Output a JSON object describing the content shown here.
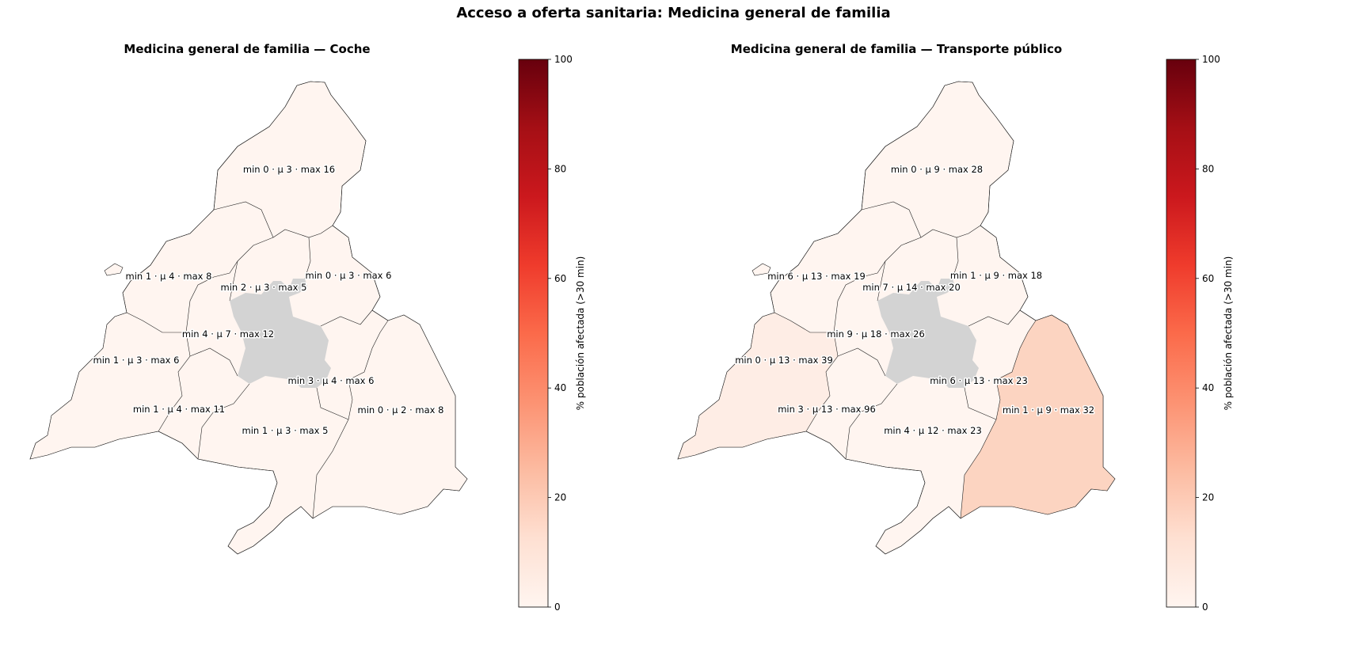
{
  "suptitle": "Acceso a oferta sanitaria: Medicina general de familia",
  "chart_data": [
    {
      "type": "choropleth",
      "title": "Medicina general de familia — Coche",
      "colormap": "Reds",
      "colorbar": {
        "label": "% población afectada (>30 min)",
        "range": [
          0,
          100
        ],
        "ticks": [
          "0",
          "20",
          "40",
          "60",
          "80",
          "100"
        ]
      },
      "no_data_color": "#d3d3d3",
      "regions": [
        {
          "id": "north",
          "label": "min 0 · μ 3 · max 16",
          "min": 0,
          "mean": 3,
          "max": 16,
          "fill": "#fff5f0"
        },
        {
          "id": "northwest",
          "label": "min 1 · μ 4 · max 8",
          "min": 1,
          "mean": 4,
          "max": 8,
          "fill": "#fff5f0"
        },
        {
          "id": "north-center",
          "label": "min 2 · μ 3 · max 5",
          "min": 2,
          "mean": 3,
          "max": 5,
          "fill": "#fff5f0"
        },
        {
          "id": "northeast",
          "label": "min 0 · μ 3 · max 6",
          "min": 0,
          "mean": 3,
          "max": 6,
          "fill": "#fff5f0"
        },
        {
          "id": "center-west",
          "label": "min 4 · μ 7 · max 12",
          "min": 4,
          "mean": 7,
          "max": 12,
          "fill": "#fff5f0"
        },
        {
          "id": "west",
          "label": "min 1 · μ 3 · max 6",
          "min": 1,
          "mean": 3,
          "max": 6,
          "fill": "#fff5f0"
        },
        {
          "id": "east-center",
          "label": "min 3 · μ 4 · max 6",
          "min": 3,
          "mean": 4,
          "max": 6,
          "fill": "#fff5f0"
        },
        {
          "id": "southwest",
          "label": "min 1 · μ 4 · max 11",
          "min": 1,
          "mean": 4,
          "max": 11,
          "fill": "#fff5f0"
        },
        {
          "id": "east",
          "label": "min 0 · μ 2 · max 8",
          "min": 0,
          "mean": 2,
          "max": 8,
          "fill": "#fff5f0"
        },
        {
          "id": "south",
          "label": "min 1 · μ 3 · max 5",
          "min": 1,
          "mean": 3,
          "max": 5,
          "fill": "#fff5f0"
        }
      ]
    },
    {
      "type": "choropleth",
      "title": "Medicina general de familia — Transporte público",
      "colormap": "Reds",
      "colorbar": {
        "label": "% población afectada (>30 min)",
        "range": [
          0,
          100
        ],
        "ticks": [
          "0",
          "20",
          "40",
          "60",
          "80",
          "100"
        ]
      },
      "no_data_color": "#d3d3d3",
      "regions": [
        {
          "id": "north",
          "label": "min 0 · μ 9 · max 28",
          "min": 0,
          "mean": 9,
          "max": 28,
          "fill": "#fff5f0"
        },
        {
          "id": "northwest",
          "label": "min 6 · μ 13 · max 19",
          "min": 6,
          "mean": 13,
          "max": 19,
          "fill": "#fff5f0"
        },
        {
          "id": "north-center",
          "label": "min 7 · μ 14 · max 20",
          "min": 7,
          "mean": 14,
          "max": 20,
          "fill": "#fff5f0"
        },
        {
          "id": "northeast",
          "label": "min 1 · μ 9 · max 18",
          "min": 1,
          "mean": 9,
          "max": 18,
          "fill": "#fff5f0"
        },
        {
          "id": "center-west",
          "label": "min 9 · μ 18 · max 26",
          "min": 9,
          "mean": 18,
          "max": 26,
          "fill": "#fff5f0"
        },
        {
          "id": "west",
          "label": "min 0 · μ 13 · max 39",
          "min": 0,
          "mean": 13,
          "max": 39,
          "fill": "#feede5"
        },
        {
          "id": "east-center",
          "label": "min 6 · μ 13 · max 23",
          "min": 6,
          "mean": 13,
          "max": 23,
          "fill": "#fff5f0"
        },
        {
          "id": "southwest",
          "label": "min 3 · μ 13 · max 96",
          "min": 3,
          "mean": 13,
          "max": 96,
          "fill": "#fff5f0"
        },
        {
          "id": "east",
          "label": "min 1 · μ 9 · max 32",
          "min": 1,
          "mean": 9,
          "max": 32,
          "fill": "#fcd4c1"
        },
        {
          "id": "south",
          "label": "min 4 · μ 12 · max 23",
          "min": 4,
          "mean": 12,
          "max": 23,
          "fill": "#fff5f0"
        }
      ]
    }
  ]
}
